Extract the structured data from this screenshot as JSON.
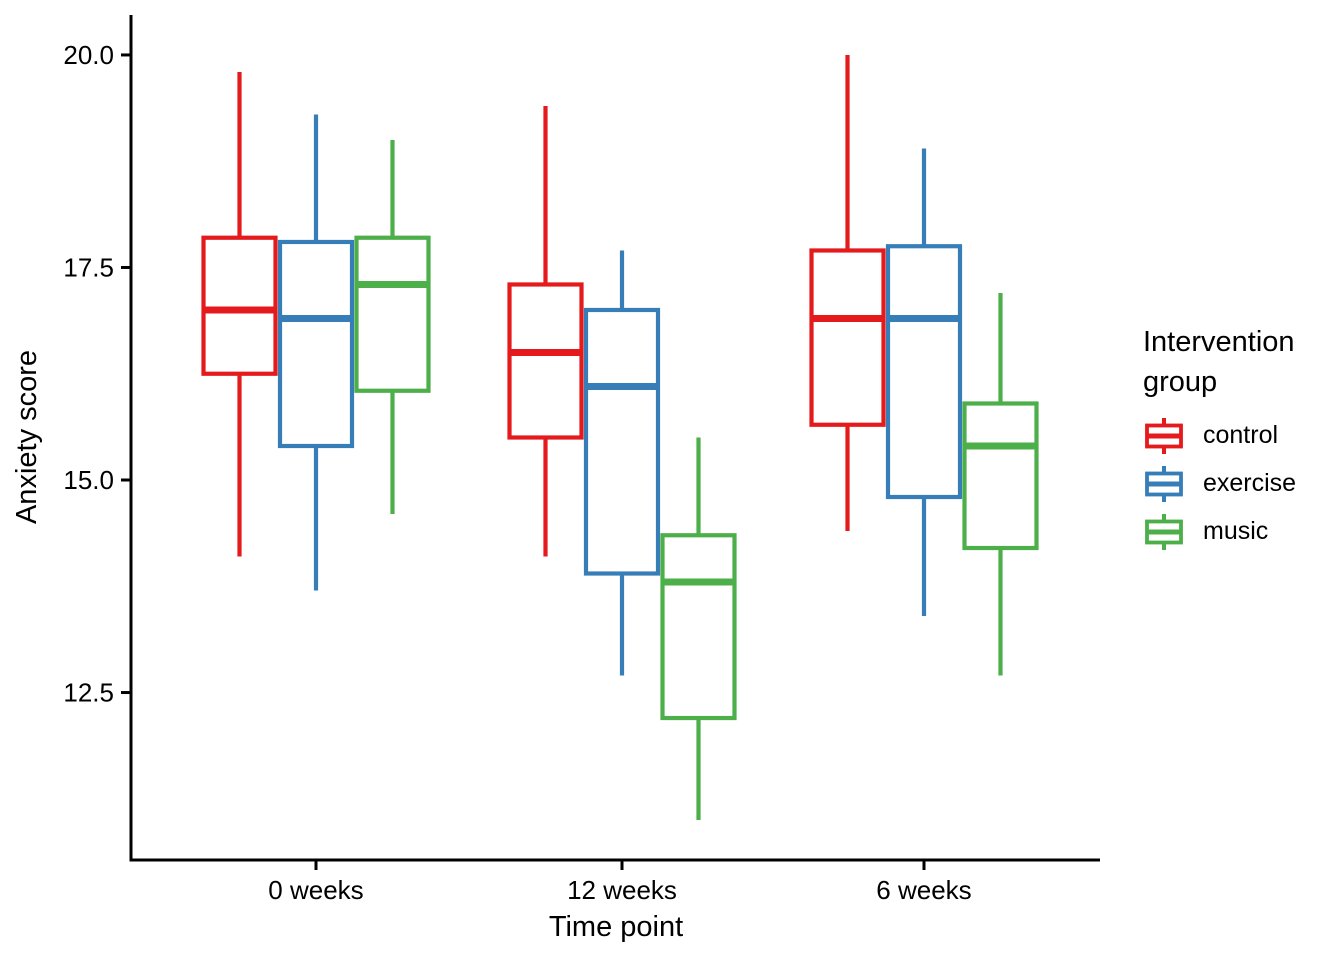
{
  "chart_data": {
    "type": "boxplot",
    "title": "",
    "xlabel": "Time point",
    "ylabel": "Anxiety score",
    "categories": [
      "0 weeks",
      "12 weeks",
      "6 weeks"
    ],
    "y_ticks": [
      12.5,
      15.0,
      17.5,
      20.0
    ],
    "y_tick_labels": [
      "12.5",
      "15.0",
      "17.5",
      "20.0"
    ],
    "ylim": [
      10.53,
      20.47
    ],
    "grid": false,
    "background": "#ffffff",
    "axis_color": "#000000",
    "text_color": "#000000",
    "legend": {
      "title": "Intervention group",
      "position": "right"
    },
    "series": [
      {
        "name": "control",
        "color": "#E41A1C",
        "boxes": [
          {
            "category": "0 weeks",
            "whisker_low": 14.1,
            "q1": 16.25,
            "median": 17.0,
            "q3": 17.85,
            "whisker_high": 19.8
          },
          {
            "category": "12 weeks",
            "whisker_low": 14.1,
            "q1": 15.5,
            "median": 16.5,
            "q3": 17.3,
            "whisker_high": 19.4
          },
          {
            "category": "6 weeks",
            "whisker_low": 14.4,
            "q1": 15.65,
            "median": 16.9,
            "q3": 17.7,
            "whisker_high": 20.0
          }
        ]
      },
      {
        "name": "exercise",
        "color": "#377EB8",
        "boxes": [
          {
            "category": "0 weeks",
            "whisker_low": 13.7,
            "q1": 15.4,
            "median": 16.9,
            "q3": 17.8,
            "whisker_high": 19.3
          },
          {
            "category": "12 weeks",
            "whisker_low": 12.7,
            "q1": 13.9,
            "median": 16.1,
            "q3": 17.0,
            "whisker_high": 17.7
          },
          {
            "category": "6 weeks",
            "whisker_low": 13.4,
            "q1": 14.8,
            "median": 16.9,
            "q3": 17.75,
            "whisker_high": 18.9
          }
        ]
      },
      {
        "name": "music",
        "color": "#4DAF4A",
        "boxes": [
          {
            "category": "0 weeks",
            "whisker_low": 14.6,
            "q1": 16.05,
            "median": 17.3,
            "q3": 17.85,
            "whisker_high": 19.0
          },
          {
            "category": "12 weeks",
            "whisker_low": 11.0,
            "q1": 12.2,
            "median": 13.8,
            "q3": 14.35,
            "whisker_high": 15.5
          },
          {
            "category": "6 weeks",
            "whisker_low": 12.7,
            "q1": 14.2,
            "median": 15.4,
            "q3": 15.9,
            "whisker_high": 17.2
          }
        ]
      }
    ]
  }
}
